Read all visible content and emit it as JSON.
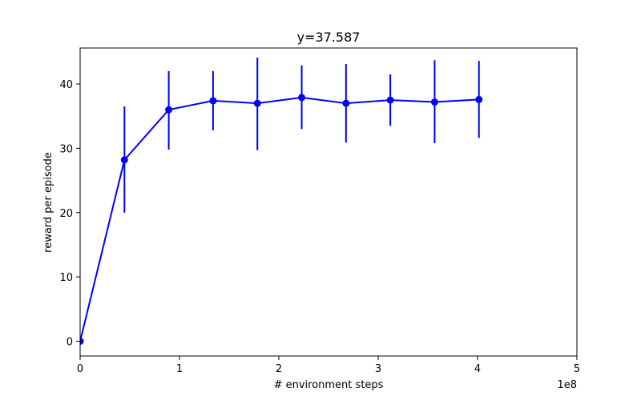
{
  "chart_data": {
    "type": "line",
    "title": "y=37.587",
    "xlabel": "# environment steps",
    "ylabel": "reward per episode",
    "x_offset_label": "1e8",
    "xlim": [
      0,
      5
    ],
    "ylim": [
      -2.3,
      45.6
    ],
    "xticks": [
      0,
      1,
      2,
      3,
      4,
      5
    ],
    "xtick_labels": [
      "0",
      "1",
      "2",
      "3",
      "4",
      "5"
    ],
    "yticks": [
      0,
      10,
      20,
      30,
      40
    ],
    "ytick_labels": [
      "0",
      "10",
      "20",
      "30",
      "40"
    ],
    "grid": false,
    "legend": null,
    "color": "#0000ff",
    "x": [
      0.0,
      0.446,
      0.892,
      1.338,
      1.784,
      2.23,
      2.676,
      3.122,
      3.568,
      4.014
    ],
    "y": [
      0.0,
      28.2,
      36.0,
      37.4,
      37.0,
      37.9,
      37.0,
      37.5,
      37.2,
      37.587
    ],
    "error_low": [
      0.0,
      20.0,
      29.8,
      32.8,
      29.7,
      33.0,
      30.9,
      33.5,
      30.8,
      31.6
    ],
    "error_high": [
      0.0,
      36.5,
      42.0,
      42.0,
      44.1,
      42.9,
      43.1,
      41.5,
      43.7,
      43.6
    ]
  }
}
